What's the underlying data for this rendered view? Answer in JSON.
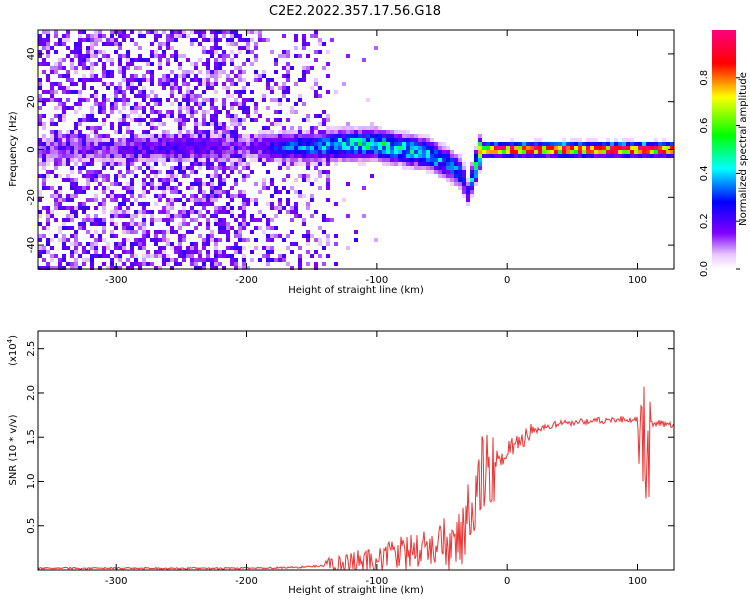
{
  "title": "C2E2.2022.357.17.56.G18",
  "colors": {
    "snr_line": "#ee3333",
    "frame": "#000000",
    "background": "#ffffff",
    "colorscale": [
      "#ffffff",
      "#8000ff",
      "#0000ff",
      "#00ffff",
      "#00ff00",
      "#ffff00",
      "#ff0000",
      "#ff0080"
    ]
  },
  "chart_data": [
    {
      "type": "heatmap",
      "name": "spectrogram",
      "xlabel": "Height of straight line (km)",
      "ylabel": "Frequency (Hz)",
      "xlim": [
        -360,
        128
      ],
      "ylim": [
        -50,
        50
      ],
      "xticks": [
        -300,
        -200,
        -100,
        0,
        100
      ],
      "yticks": [
        -40,
        -20,
        0,
        20,
        40
      ],
      "xticklabels": [
        "-300",
        "-200",
        "-100",
        "0",
        "100"
      ],
      "yticklabels": [
        "-40",
        "-20",
        "0",
        "20",
        "40"
      ],
      "colorbar": {
        "label": "Normalized spectral amplitude",
        "range": [
          0,
          1
        ],
        "ticks": [
          0.0,
          0.2,
          0.4,
          0.6,
          0.8
        ],
        "ticklabels": [
          "0.0",
          "0.2",
          "0.4",
          "0.6",
          "0.8"
        ]
      },
      "ridge": [
        {
          "x": -300,
          "center": 0,
          "amp": 0.12
        },
        {
          "x": -250,
          "center": 1,
          "amp": 0.2
        },
        {
          "x": -200,
          "center": 1,
          "amp": 0.12
        },
        {
          "x": -170,
          "center": 1,
          "amp": 0.3
        },
        {
          "x": -150,
          "center": 1,
          "amp": 0.32
        },
        {
          "x": -120,
          "center": 2,
          "amp": 0.45
        },
        {
          "x": -100,
          "center": 2,
          "amp": 0.45
        },
        {
          "x": -80,
          "center": 0,
          "amp": 0.42
        },
        {
          "x": -60,
          "center": -2,
          "amp": 0.4
        },
        {
          "x": -45,
          "center": -6,
          "amp": 0.35
        },
        {
          "x": -35,
          "center": -10,
          "amp": 0.3
        },
        {
          "x": -30,
          "center": -18,
          "amp": 0.2
        },
        {
          "x": -20,
          "center": 0,
          "amp": 0.75
        },
        {
          "x": 0,
          "center": 0,
          "amp": 0.9
        },
        {
          "x": 50,
          "center": 0,
          "amp": 0.95
        },
        {
          "x": 128,
          "center": 0,
          "amp": 0.95
        }
      ]
    },
    {
      "type": "line",
      "name": "snr",
      "xlabel": "Height of straight line (km)",
      "ylabel": "SNR (10 * v/v)",
      "scale_label": "(x10",
      "scale_exponent": "4",
      "scale_close": ")",
      "xlim": [
        -360,
        128
      ],
      "ylim": [
        0,
        2.7
      ],
      "xticks": [
        -300,
        -200,
        -100,
        0,
        100
      ],
      "yticks": [
        0.5,
        1.0,
        1.5,
        2.0,
        2.5
      ],
      "xticklabels": [
        "-300",
        "-200",
        "-100",
        "0",
        "100"
      ],
      "yticklabels": [
        "0.5",
        "1.0",
        "1.5",
        "2.0",
        "2.5"
      ],
      "x": [
        -360,
        -300,
        -250,
        -200,
        -160,
        -140,
        -120,
        -100,
        -80,
        -70,
        -60,
        -50,
        -40,
        -30,
        -25,
        -20,
        -15,
        -10,
        -5,
        0,
        10,
        20,
        30,
        40,
        50,
        60,
        70,
        80,
        90,
        95,
        100,
        103,
        105,
        107,
        110,
        115,
        120,
        128
      ],
      "y": [
        0.02,
        0.02,
        0.02,
        0.02,
        0.03,
        0.05,
        0.08,
        0.12,
        0.18,
        0.22,
        0.25,
        0.3,
        0.4,
        0.6,
        0.9,
        1.1,
        1.15,
        1.2,
        1.28,
        1.35,
        1.45,
        1.55,
        1.62,
        1.65,
        1.67,
        1.68,
        1.69,
        1.7,
        1.7,
        1.7,
        1.69,
        1.0,
        2.0,
        1.5,
        1.66,
        1.66,
        1.65,
        1.63
      ]
    }
  ]
}
